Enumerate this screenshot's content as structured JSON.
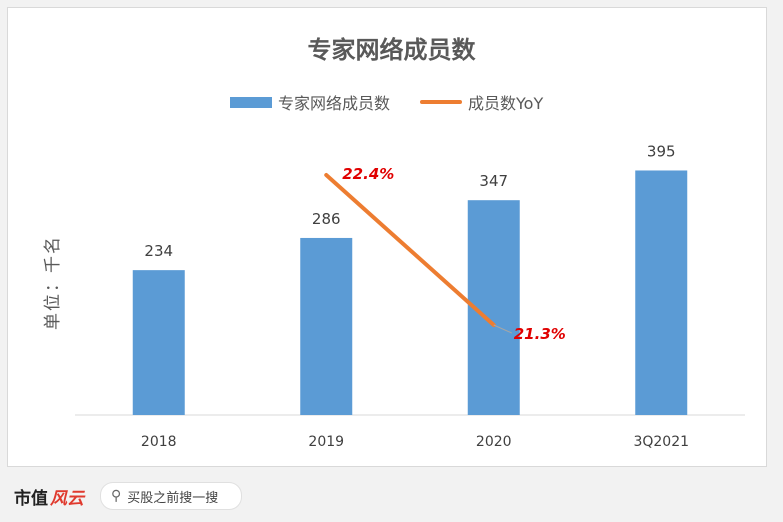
{
  "chart_data": {
    "type": "bar",
    "title": "专家网络成员数",
    "ylabel": "单位：千名",
    "categories": [
      "2018",
      "2019",
      "2020",
      "3Q2021"
    ],
    "series": [
      {
        "name": "专家网络成员数",
        "type": "bar",
        "values": [
          234,
          286,
          347,
          395
        ],
        "color": "#5b9bd5"
      },
      {
        "name": "成员数YoY",
        "type": "line",
        "values": [
          null,
          22.4,
          21.3,
          null
        ],
        "labels": [
          "",
          "22.4%",
          "21.3%",
          ""
        ],
        "color": "#ed7d31"
      }
    ],
    "ylim": [
      0,
      420
    ],
    "grid": false,
    "legend": "top"
  },
  "footer": {
    "logo_text": "市值",
    "logo_accent": "风云",
    "search_text": "买股之前搜一搜"
  }
}
